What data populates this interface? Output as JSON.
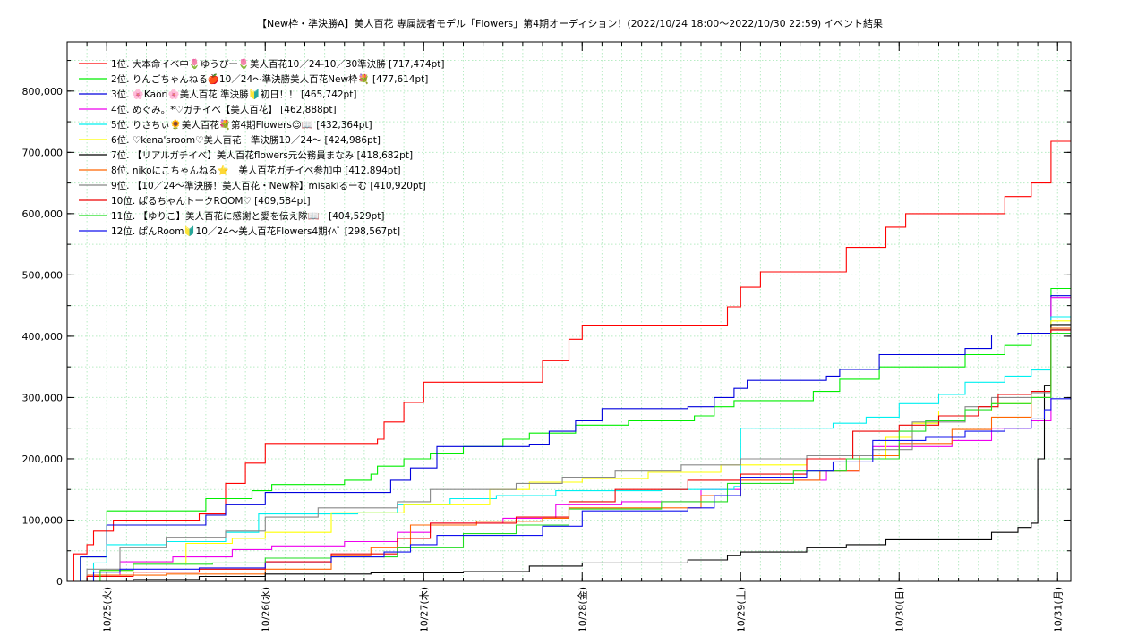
{
  "chart_data": {
    "type": "line",
    "title": "【New枠・準決勝A】美人百花 専属読者モデル「Flowers」第4期オーディション！(2022/10/24 18:00〜2022/10/30 22:59)",
    "title_suffix": "イベント結果",
    "xlabel": "",
    "ylabel": "",
    "x_tick_labels": [
      "10/25(火)",
      "10/26(水)",
      "10/27(木)",
      "10/28(金)",
      "10/29(土)",
      "10/30(日)",
      "10/31(月)"
    ],
    "x_unit": "hours since 2022/10/24 18:00",
    "xlim": [
      0,
      152
    ],
    "ylim": [
      0,
      880000
    ],
    "y_ticks": [
      0,
      100000,
      200000,
      300000,
      400000,
      500000,
      600000,
      700000,
      800000
    ],
    "y_tick_labels": [
      "0",
      "100,000",
      "200,000",
      "300,000",
      "400,000",
      "500,000",
      "600,000",
      "700,000",
      "800,000"
    ],
    "grid": true,
    "legend_position": "top-left",
    "series": [
      {
        "label": "  1位. 大本命イベ中🌷ゆうぴー🌷美人百花10／24-10／30準決勝 [717,474pt]",
        "color": "#ff0000",
        "points": [
          [
            0,
            0
          ],
          [
            1,
            45000
          ],
          [
            3,
            60000
          ],
          [
            4,
            82000
          ],
          [
            7,
            100000
          ],
          [
            20,
            110000
          ],
          [
            24,
            160000
          ],
          [
            27,
            193000
          ],
          [
            30,
            225000
          ],
          [
            47,
            232000
          ],
          [
            48,
            260000
          ],
          [
            51,
            292000
          ],
          [
            54,
            325000
          ],
          [
            72,
            360000
          ],
          [
            76,
            395000
          ],
          [
            78,
            418000
          ],
          [
            100,
            448000
          ],
          [
            102,
            480000
          ],
          [
            105,
            505000
          ],
          [
            118,
            545000
          ],
          [
            124,
            578000
          ],
          [
            127,
            600000
          ],
          [
            142,
            628000
          ],
          [
            146,
            650000
          ],
          [
            149,
            718000
          ],
          [
            152,
            718000
          ]
        ]
      },
      {
        "label": "  2位. りんごちゃんねる🍎10／24〜準決勝美人百花New枠💐 [477,614pt]",
        "color": "#00ee00",
        "points": [
          [
            0,
            0
          ],
          [
            2,
            40000
          ],
          [
            6,
            115000
          ],
          [
            21,
            135000
          ],
          [
            28,
            148000
          ],
          [
            31,
            158000
          ],
          [
            42,
            165000
          ],
          [
            46,
            175000
          ],
          [
            47,
            188000
          ],
          [
            51,
            200000
          ],
          [
            55,
            208000
          ],
          [
            60,
            220000
          ],
          [
            66,
            232000
          ],
          [
            70,
            242000
          ],
          [
            77,
            255000
          ],
          [
            85,
            262000
          ],
          [
            95,
            270000
          ],
          [
            98,
            285000
          ],
          [
            101,
            295000
          ],
          [
            113,
            310000
          ],
          [
            117,
            330000
          ],
          [
            123,
            350000
          ],
          [
            136,
            370000
          ],
          [
            142,
            385000
          ],
          [
            146,
            405000
          ],
          [
            149,
            478000
          ],
          [
            152,
            478000
          ]
        ]
      },
      {
        "label": "  3位. 🌸Kaori🌸美人百花 準決勝🔰初日！！ [465,742pt]",
        "color": "#0000dd",
        "points": [
          [
            0,
            0
          ],
          [
            2,
            40000
          ],
          [
            6,
            92000
          ],
          [
            21,
            108000
          ],
          [
            24,
            125000
          ],
          [
            30,
            145000
          ],
          [
            47,
            145000
          ],
          [
            49,
            165000
          ],
          [
            52,
            185000
          ],
          [
            56,
            220000
          ],
          [
            70,
            224000
          ],
          [
            73,
            245000
          ],
          [
            77,
            262000
          ],
          [
            81,
            282000
          ],
          [
            94,
            285000
          ],
          [
            98,
            300000
          ],
          [
            101,
            315000
          ],
          [
            103,
            328000
          ],
          [
            115,
            335000
          ],
          [
            117,
            346000
          ],
          [
            123,
            370000
          ],
          [
            136,
            380000
          ],
          [
            140,
            402000
          ],
          [
            144,
            405000
          ],
          [
            149,
            466000
          ],
          [
            152,
            466000
          ]
        ]
      },
      {
        "label": "  4位. めぐみ。*♡ガチイベ【美人百花】 [462,888pt]",
        "color": "#ee00ee",
        "points": [
          [
            0,
            0
          ],
          [
            3,
            10000
          ],
          [
            8,
            32000
          ],
          [
            16,
            40000
          ],
          [
            25,
            52000
          ],
          [
            31,
            58000
          ],
          [
            42,
            65000
          ],
          [
            50,
            80000
          ],
          [
            55,
            95000
          ],
          [
            66,
            103000
          ],
          [
            74,
            125000
          ],
          [
            84,
            130000
          ],
          [
            96,
            150000
          ],
          [
            102,
            165000
          ],
          [
            115,
            180000
          ],
          [
            120,
            200000
          ],
          [
            122,
            220000
          ],
          [
            134,
            230000
          ],
          [
            140,
            250000
          ],
          [
            146,
            262000
          ],
          [
            149,
            463000
          ],
          [
            152,
            463000
          ]
        ]
      },
      {
        "label": "  5位. りさちぃ🌻美人百花💐第4期Flowers😌📖 [432,364pt]",
        "color": "#00f0f0",
        "points": [
          [
            0,
            0
          ],
          [
            4,
            30000
          ],
          [
            6,
            60000
          ],
          [
            15,
            65000
          ],
          [
            24,
            80000
          ],
          [
            29,
            110000
          ],
          [
            44,
            112000
          ],
          [
            50,
            125000
          ],
          [
            58,
            135000
          ],
          [
            65,
            140000
          ],
          [
            74,
            148000
          ],
          [
            90,
            150000
          ],
          [
            101,
            155000
          ],
          [
            102,
            250000
          ],
          [
            116,
            258000
          ],
          [
            121,
            268000
          ],
          [
            126,
            290000
          ],
          [
            132,
            305000
          ],
          [
            136,
            325000
          ],
          [
            142,
            335000
          ],
          [
            146,
            345000
          ],
          [
            149,
            432000
          ],
          [
            152,
            432000
          ]
        ]
      },
      {
        "label": "  6位. ♡kena'sroom♡美人百花　準決勝10／24〜 [424,986pt]",
        "color": "#ffff00",
        "points": [
          [
            0,
            0
          ],
          [
            5,
            18000
          ],
          [
            10,
            30000
          ],
          [
            18,
            62000
          ],
          [
            25,
            70000
          ],
          [
            30,
            80000
          ],
          [
            40,
            112000
          ],
          [
            51,
            125000
          ],
          [
            64,
            150000
          ],
          [
            70,
            162000
          ],
          [
            78,
            168000
          ],
          [
            88,
            178000
          ],
          [
            99,
            190000
          ],
          [
            112,
            200000
          ],
          [
            124,
            235000
          ],
          [
            128,
            258000
          ],
          [
            132,
            278000
          ],
          [
            140,
            290000
          ],
          [
            146,
            300000
          ],
          [
            149,
            425000
          ],
          [
            152,
            425000
          ]
        ]
      },
      {
        "label": "  7位. 【リアルガチイベ】美人百花flowers元公務員まなみ [418,682pt]",
        "color": "#000000",
        "points": [
          [
            0,
            0
          ],
          [
            10,
            3000
          ],
          [
            20,
            8000
          ],
          [
            30,
            12000
          ],
          [
            46,
            14000
          ],
          [
            60,
            16000
          ],
          [
            70,
            25000
          ],
          [
            78,
            30000
          ],
          [
            94,
            35000
          ],
          [
            100,
            42000
          ],
          [
            102,
            48000
          ],
          [
            112,
            55000
          ],
          [
            118,
            60000
          ],
          [
            124,
            68000
          ],
          [
            140,
            80000
          ],
          [
            144,
            88000
          ],
          [
            146,
            95000
          ],
          [
            147,
            200000
          ],
          [
            148,
            320000
          ],
          [
            149,
            419000
          ],
          [
            152,
            419000
          ]
        ]
      },
      {
        "label": "  8位. nikoにこちゃんねる⭐　美人百花ガチイベ参加中 [412,894pt]",
        "color": "#ff6600",
        "points": [
          [
            0,
            0
          ],
          [
            3,
            10000
          ],
          [
            15,
            12000
          ],
          [
            30,
            20000
          ],
          [
            40,
            42000
          ],
          [
            46,
            55000
          ],
          [
            52,
            92000
          ],
          [
            62,
            98000
          ],
          [
            72,
            103000
          ],
          [
            76,
            120000
          ],
          [
            96,
            140000
          ],
          [
            102,
            165000
          ],
          [
            114,
            180000
          ],
          [
            120,
            205000
          ],
          [
            126,
            225000
          ],
          [
            134,
            248000
          ],
          [
            140,
            268000
          ],
          [
            146,
            300000
          ],
          [
            149,
            413000
          ],
          [
            152,
            413000
          ]
        ]
      },
      {
        "label": "  9位. 【10／24〜準決勝！美人百花・New枠】misakiるーむ [410,920pt]",
        "color": "#888888",
        "points": [
          [
            0,
            0
          ],
          [
            3,
            20000
          ],
          [
            8,
            55000
          ],
          [
            15,
            72000
          ],
          [
            24,
            82000
          ],
          [
            30,
            105000
          ],
          [
            38,
            120000
          ],
          [
            50,
            130000
          ],
          [
            55,
            150000
          ],
          [
            68,
            160000
          ],
          [
            75,
            170000
          ],
          [
            83,
            180000
          ],
          [
            93,
            190000
          ],
          [
            102,
            200000
          ],
          [
            112,
            205000
          ],
          [
            122,
            215000
          ],
          [
            128,
            260000
          ],
          [
            136,
            285000
          ],
          [
            140,
            300000
          ],
          [
            146,
            308000
          ],
          [
            149,
            411000
          ],
          [
            152,
            411000
          ]
        ]
      },
      {
        "label": "10位. ぱるちゃんトークROOM♡ [409,584pt]",
        "color": "#ee0000",
        "points": [
          [
            0,
            0
          ],
          [
            3,
            8000
          ],
          [
            10,
            15000
          ],
          [
            20,
            20000
          ],
          [
            30,
            32000
          ],
          [
            40,
            45000
          ],
          [
            50,
            70000
          ],
          [
            55,
            95000
          ],
          [
            68,
            105000
          ],
          [
            76,
            130000
          ],
          [
            83,
            150000
          ],
          [
            94,
            165000
          ],
          [
            102,
            175000
          ],
          [
            112,
            200000
          ],
          [
            119,
            245000
          ],
          [
            126,
            255000
          ],
          [
            132,
            270000
          ],
          [
            138,
            285000
          ],
          [
            141,
            305000
          ],
          [
            146,
            310000
          ],
          [
            149,
            410000
          ],
          [
            152,
            410000
          ]
        ]
      },
      {
        "label": "11位. 【ゆりこ】美人百花に感謝と愛を伝え隊📖　[404,529pt]",
        "color": "#22dd22",
        "points": [
          [
            0,
            0
          ],
          [
            5,
            18000
          ],
          [
            10,
            28000
          ],
          [
            22,
            30000
          ],
          [
            30,
            38000
          ],
          [
            40,
            40000
          ],
          [
            50,
            55000
          ],
          [
            60,
            78000
          ],
          [
            68,
            92000
          ],
          [
            76,
            118000
          ],
          [
            90,
            130000
          ],
          [
            100,
            160000
          ],
          [
            110,
            180000
          ],
          [
            118,
            200000
          ],
          [
            126,
            245000
          ],
          [
            130,
            262000
          ],
          [
            136,
            280000
          ],
          [
            140,
            290000
          ],
          [
            146,
            300000
          ],
          [
            149,
            405000
          ],
          [
            152,
            405000
          ]
        ]
      },
      {
        "label": "12位. ぱんRoom🔰10／24〜美人百花Flowers4期ｲﾍﾞ [298,567pt]",
        "color": "#1010ee",
        "points": [
          [
            0,
            0
          ],
          [
            4,
            15000
          ],
          [
            8,
            20000
          ],
          [
            20,
            22000
          ],
          [
            30,
            30000
          ],
          [
            40,
            40000
          ],
          [
            48,
            48000
          ],
          [
            52,
            60000
          ],
          [
            56,
            75000
          ],
          [
            72,
            90000
          ],
          [
            78,
            115000
          ],
          [
            94,
            120000
          ],
          [
            98,
            140000
          ],
          [
            102,
            170000
          ],
          [
            112,
            180000
          ],
          [
            116,
            195000
          ],
          [
            122,
            230000
          ],
          [
            130,
            235000
          ],
          [
            136,
            245000
          ],
          [
            142,
            250000
          ],
          [
            146,
            265000
          ],
          [
            148,
            280000
          ],
          [
            149,
            298000
          ],
          [
            152,
            300000
          ]
        ]
      }
    ]
  }
}
